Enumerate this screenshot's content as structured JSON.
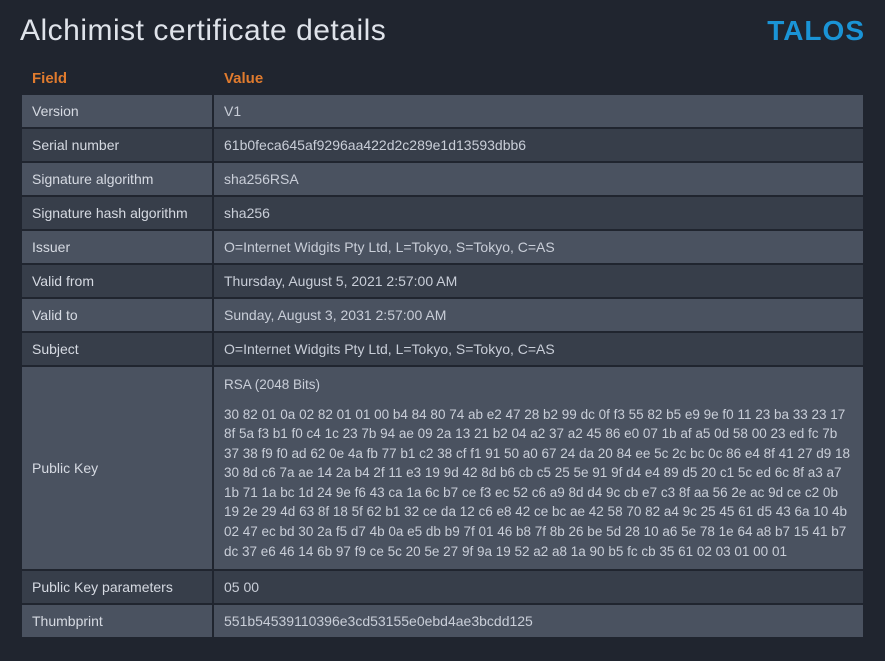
{
  "header": {
    "title": "Alchimist  certificate details",
    "logo_text": "Talos",
    "logo_color": "#1a94d6"
  },
  "table": {
    "columns": {
      "field": "Field",
      "value": "Value"
    },
    "rows": [
      {
        "field": "Version",
        "value": "V1"
      },
      {
        "field": "Serial number",
        "value": "61b0feca645af9296aa422d2c289e1d13593dbb6"
      },
      {
        "field": "Signature algorithm",
        "value": "sha256RSA"
      },
      {
        "field": "Signature hash algorithm",
        "value": "sha256"
      },
      {
        "field": "Issuer",
        "value": "O=Internet Widgits Pty Ltd, L=Tokyo, S=Tokyo, C=AS"
      },
      {
        "field": "Valid from",
        "value": "Thursday, August 5, 2021 2:57:00 AM"
      },
      {
        "field": "Valid to",
        "value": "Sunday, August 3, 2031 2:57:00 AM"
      },
      {
        "field": "Subject",
        "value": "O=Internet Widgits Pty Ltd, L=Tokyo, S=Tokyo, C=AS"
      },
      {
        "field": "Public Key",
        "value_header": "RSA (2048 Bits)",
        "value_hex": "30 82 01 0a 02 82 01 01 00 b4 84 80 74 ab e2 47 28 b2 99 dc 0f f3 55 82 b5 e9 9e f0 11 23 ba 33 23 17 8f 5a f3 b1 f0 c4 1c 23 7b 94 ae 09 2a 13 21 b2 04 a2 37 a2 45 86 e0 07 1b af a5 0d 58 00 23 ed fc 7b 37 38 f9 f0 ad 62 0e 4a fb 77 b1 c2 38 cf f1 91 50 a0 67 24 da 20 84 ee 5c 2c bc 0c 86 e4 8f 41 27 d9 18 30 8d c6 7a ae 14 2a b4 2f 11 e3 19 9d 42 8d b6 cb c5 25 5e 91 9f d4 e4 89 d5 20 c1 5c ed 6c 8f a3 a7 1b 71 1a bc 1d 24 9e f6 43 ca 1a 6c b7 ce f3 ec 52 c6 a9 8d d4 9c cb e7 c3 8f aa 56 2e ac 9d ce c2 0b 19 2e 29 4d 63 8f 18 5f 62 b1 32 ce da 12 c6 e8 42 ce bc ae 42 58 70 82 a4 9c 25 45 61 d5 43 6a 10 4b 02 47 ec bd 30 2a f5 d7 4b 0a e5 db b9 7f 01 46 b8 7f 8b 26 be 5d 28 10 a6 5e 78 1e 64 a8 b7 15 41 b7 dc 37 e6 46 14 6b 97 f9 ce 5c 20 5e 27 9f 9a 19 52 a2 a8 1a 90 b5 fc cb 35 61 02 03 01 00 01"
      },
      {
        "field": "Public Key parameters",
        "value": "05 00"
      },
      {
        "field": "Thumbprint",
        "value": "551b54539110396e3cd53155e0ebd4ae3bcdd125"
      }
    ]
  },
  "colors": {
    "background": "#20252f",
    "row_light": "#4a5260",
    "row_dark": "#373e4a",
    "header_orange": "#e07b2e",
    "text": "#c9ced8"
  }
}
